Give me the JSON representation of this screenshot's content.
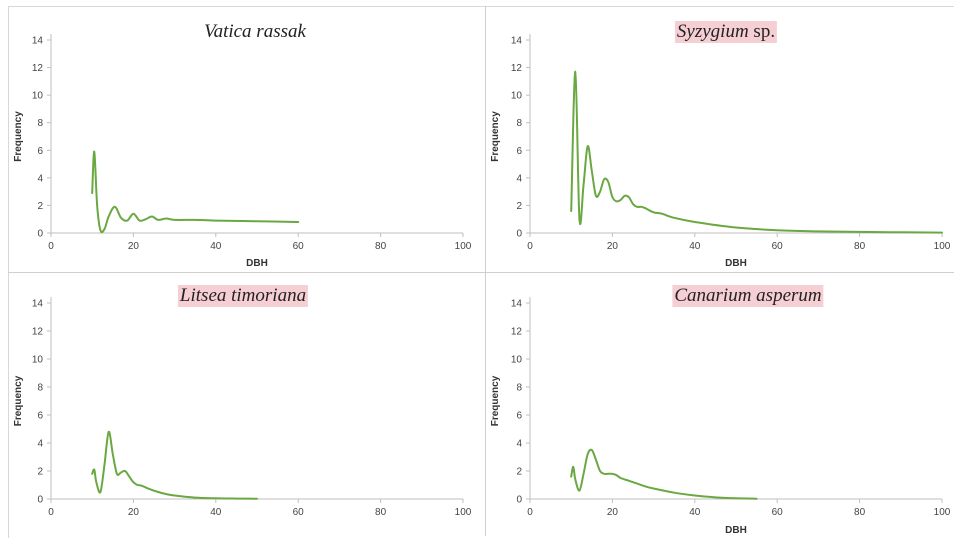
{
  "figure": {
    "series_color": "#6aa842",
    "axis_color": "#bfbfbf",
    "tick_label_color": "#444444",
    "title_highlight_color": "#f6cfd4"
  },
  "chart_data": [
    {
      "type": "line",
      "title_species": "Vatica rassak",
      "title_suffix": "",
      "title_highlighted": false,
      "xlabel": "DBH",
      "ylabel": "Frequency",
      "xlim": [
        0,
        100
      ],
      "ylim": [
        0,
        14
      ],
      "x_ticks": [
        "0",
        "20",
        "40",
        "60",
        "80",
        "100"
      ],
      "y_ticks": [
        "0",
        "2",
        "4",
        "6",
        "8",
        "10",
        "12",
        "14"
      ],
      "grid": false,
      "smooth": true,
      "series": [
        {
          "x": [
            10,
            10.5,
            11.2,
            12,
            13,
            14,
            15.5,
            17,
            18.5,
            20,
            21.5,
            23,
            24.5,
            26,
            28,
            30,
            35,
            40,
            50,
            60
          ],
          "y": [
            2.9,
            5.9,
            2.0,
            0.2,
            0.3,
            1.2,
            1.9,
            1.1,
            0.9,
            1.4,
            0.9,
            1.0,
            1.2,
            0.95,
            1.05,
            0.95,
            0.95,
            0.9,
            0.85,
            0.8
          ]
        }
      ]
    },
    {
      "type": "line",
      "title_species": "Syzygium",
      "title_suffix": " sp.",
      "title_highlighted": true,
      "xlabel": "DBH",
      "ylabel": "Frequency",
      "xlim": [
        0,
        100
      ],
      "ylim": [
        0,
        14
      ],
      "x_ticks": [
        "0",
        "20",
        "40",
        "60",
        "80",
        "100"
      ],
      "y_ticks": [
        "0",
        "2",
        "4",
        "6",
        "8",
        "10",
        "12",
        "14"
      ],
      "grid": false,
      "smooth": true,
      "series": [
        {
          "x": [
            10,
            11,
            12,
            13,
            14,
            15,
            16,
            17,
            18,
            19,
            20,
            21,
            22,
            23,
            24,
            25,
            26,
            27,
            28,
            30,
            32,
            35,
            40,
            50,
            60,
            70,
            80,
            90,
            100
          ],
          "y": [
            1.6,
            11.7,
            1.0,
            3.5,
            6.3,
            4.5,
            2.7,
            3.0,
            3.9,
            3.7,
            2.6,
            2.3,
            2.4,
            2.7,
            2.6,
            2.1,
            1.9,
            1.9,
            1.8,
            1.5,
            1.4,
            1.1,
            0.8,
            0.4,
            0.2,
            0.12,
            0.08,
            0.05,
            0.03
          ]
        }
      ]
    },
    {
      "type": "line",
      "title_species": "Litsea timoriana",
      "title_suffix": "",
      "title_highlighted": true,
      "xlabel": "",
      "ylabel": "Frequency",
      "xlim": [
        0,
        100
      ],
      "ylim": [
        0,
        14
      ],
      "x_ticks": [
        "0",
        "20",
        "40",
        "60",
        "80",
        "100"
      ],
      "y_ticks": [
        "0",
        "2",
        "4",
        "6",
        "8",
        "10",
        "12",
        "14"
      ],
      "grid": false,
      "smooth": true,
      "series": [
        {
          "x": [
            10,
            10.5,
            11,
            12,
            13,
            14,
            15,
            16,
            17,
            18,
            19,
            20,
            21,
            22,
            24,
            26,
            28,
            30,
            35,
            40,
            45,
            50
          ],
          "y": [
            1.8,
            2.1,
            1.2,
            0.5,
            2.5,
            4.8,
            3.2,
            1.8,
            1.9,
            2.0,
            1.6,
            1.2,
            1.0,
            0.95,
            0.7,
            0.5,
            0.35,
            0.25,
            0.1,
            0.05,
            0.03,
            0.02
          ]
        }
      ]
    },
    {
      "type": "line",
      "title_species": "Canarium asperum",
      "title_suffix": "",
      "title_highlighted": true,
      "xlabel": "DBH",
      "ylabel": "Frequency",
      "xlim": [
        0,
        100
      ],
      "ylim": [
        0,
        14
      ],
      "x_ticks": [
        "0",
        "20",
        "40",
        "60",
        "80",
        "100"
      ],
      "y_ticks": [
        "0",
        "2",
        "4",
        "6",
        "8",
        "10",
        "12",
        "14"
      ],
      "grid": false,
      "smooth": true,
      "series": [
        {
          "x": [
            10,
            10.5,
            11,
            12,
            13,
            14,
            15,
            16,
            17,
            18,
            19,
            20,
            21,
            22,
            24,
            26,
            28,
            30,
            35,
            40,
            45,
            50,
            55
          ],
          "y": [
            1.6,
            2.3,
            1.4,
            0.6,
            1.8,
            3.2,
            3.5,
            2.8,
            2.0,
            1.8,
            1.8,
            1.8,
            1.7,
            1.5,
            1.3,
            1.1,
            0.9,
            0.75,
            0.45,
            0.25,
            0.12,
            0.05,
            0.02
          ]
        }
      ]
    }
  ]
}
